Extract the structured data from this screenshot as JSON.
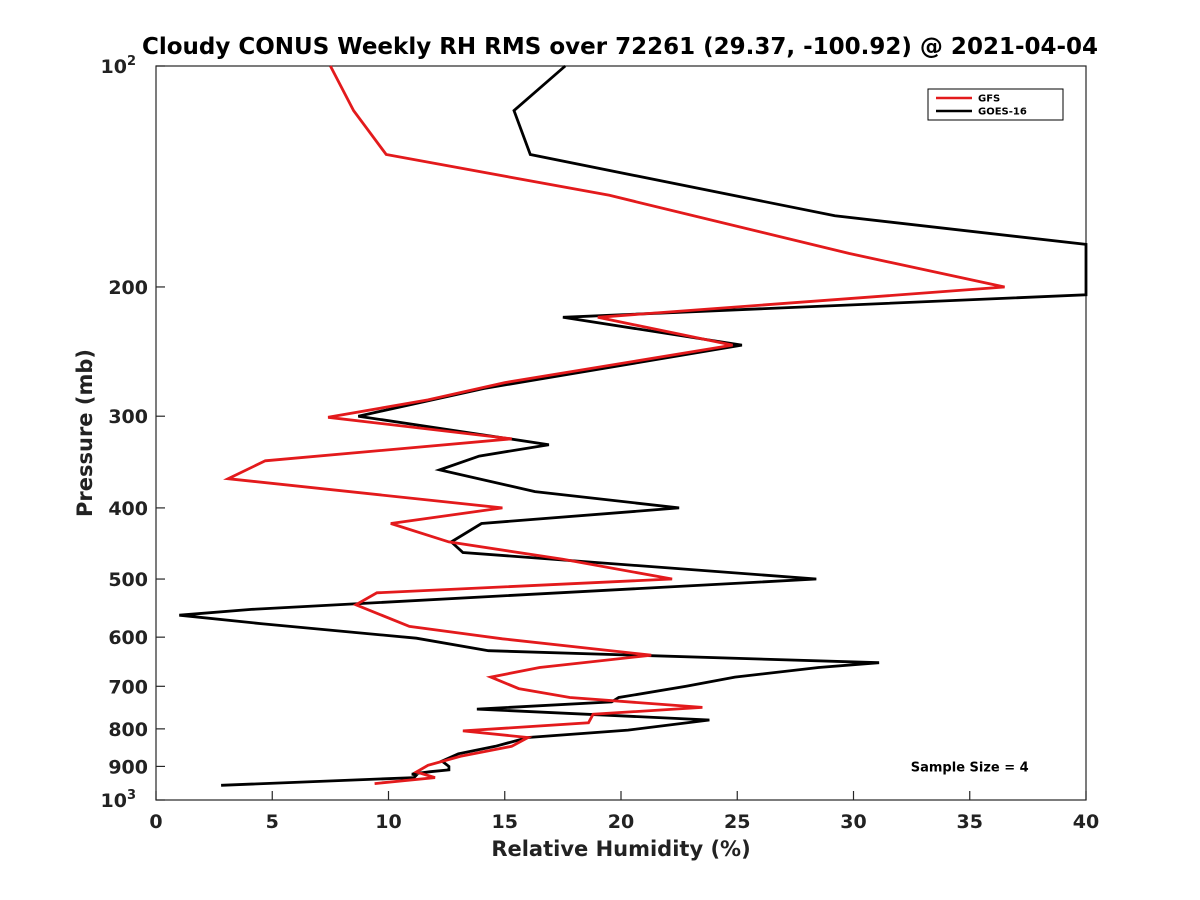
{
  "chart_data": {
    "type": "line",
    "title": "Cloudy CONUS Weekly RH RMS over 72261 (29.37, -100.92) @ 2021-04-04",
    "xlabel": "Relative Humidity (%)",
    "ylabel": "Pressure (mb)",
    "xlim": [
      0,
      40
    ],
    "ylim": [
      100,
      1000
    ],
    "yscale": "log",
    "y_reversed": true,
    "grid": false,
    "legend_position": "top-right",
    "x_ticks": [
      {
        "value": 0,
        "label": "0"
      },
      {
        "value": 5,
        "label": "5"
      },
      {
        "value": 10,
        "label": "10"
      },
      {
        "value": 15,
        "label": "15"
      },
      {
        "value": 20,
        "label": "20"
      },
      {
        "value": 25,
        "label": "25"
      },
      {
        "value": 30,
        "label": "30"
      },
      {
        "value": 35,
        "label": "35"
      },
      {
        "value": 40,
        "label": "40"
      }
    ],
    "y_ticks": [
      {
        "value": 100,
        "base": "10",
        "exp": "2"
      },
      {
        "value": 200,
        "base": "200",
        "exp": ""
      },
      {
        "value": 300,
        "base": "300",
        "exp": ""
      },
      {
        "value": 400,
        "base": "400",
        "exp": ""
      },
      {
        "value": 500,
        "base": "500",
        "exp": ""
      },
      {
        "value": 600,
        "base": "600",
        "exp": ""
      },
      {
        "value": 700,
        "base": "700",
        "exp": ""
      },
      {
        "value": 800,
        "base": "800",
        "exp": ""
      },
      {
        "value": 900,
        "base": "900",
        "exp": ""
      },
      {
        "value": 1000,
        "base": "10",
        "exp": "3"
      }
    ],
    "series": [
      {
        "name": "GFS",
        "color": "#e31a1c",
        "points": [
          [
            7.5,
            100
          ],
          [
            8.5,
            115
          ],
          [
            9.9,
            132
          ],
          [
            19.5,
            150
          ],
          [
            29.8,
            180
          ],
          [
            36.5,
            200
          ],
          [
            19.0,
            220
          ],
          [
            24.8,
            240
          ],
          [
            15.0,
            270
          ],
          [
            11.7,
            285
          ],
          [
            7.4,
            301
          ],
          [
            15.3,
            322
          ],
          [
            4.7,
            345
          ],
          [
            3.1,
            365
          ],
          [
            14.9,
            400
          ],
          [
            10.1,
            420
          ],
          [
            12.6,
            445
          ],
          [
            17.5,
            470
          ],
          [
            22.2,
            500
          ],
          [
            9.5,
            522
          ],
          [
            8.6,
            542
          ],
          [
            10.9,
            580
          ],
          [
            14.9,
            603
          ],
          [
            21.3,
            635
          ],
          [
            16.5,
            660
          ],
          [
            14.4,
            680
          ],
          [
            15.6,
            705
          ],
          [
            17.8,
            725
          ],
          [
            23.5,
            748
          ],
          [
            18.8,
            764
          ],
          [
            18.6,
            785
          ],
          [
            13.2,
            805
          ],
          [
            16.0,
            822
          ],
          [
            15.3,
            845
          ],
          [
            13.1,
            872
          ],
          [
            11.7,
            897
          ],
          [
            11.2,
            916
          ],
          [
            12.0,
            932
          ],
          [
            9.4,
            950
          ]
        ]
      },
      {
        "name": "GOES-16",
        "color": "#000000",
        "points": [
          [
            17.6,
            100
          ],
          [
            15.4,
            115
          ],
          [
            16.1,
            132
          ],
          [
            29.2,
            160
          ],
          [
            40.0,
            175
          ],
          [
            40.0,
            205
          ],
          [
            17.5,
            220
          ],
          [
            25.2,
            240
          ],
          [
            14.1,
            275
          ],
          [
            8.7,
            300
          ],
          [
            16.9,
            328
          ],
          [
            13.9,
            340
          ],
          [
            12.2,
            355
          ],
          [
            16.3,
            380
          ],
          [
            22.5,
            400
          ],
          [
            14.0,
            420
          ],
          [
            12.7,
            445
          ],
          [
            13.2,
            460
          ],
          [
            28.4,
            500
          ],
          [
            4.1,
            550
          ],
          [
            1.0,
            560
          ],
          [
            4.5,
            575
          ],
          [
            11.2,
            602
          ],
          [
            14.3,
            626
          ],
          [
            31.1,
            650
          ],
          [
            28.5,
            660
          ],
          [
            24.9,
            680
          ],
          [
            22.8,
            700
          ],
          [
            19.9,
            725
          ],
          [
            19.6,
            735
          ],
          [
            13.8,
            752
          ],
          [
            23.8,
            778
          ],
          [
            20.3,
            803
          ],
          [
            16.0,
            822
          ],
          [
            14.6,
            845
          ],
          [
            13.0,
            865
          ],
          [
            12.3,
            885
          ],
          [
            12.6,
            900
          ],
          [
            12.6,
            910
          ],
          [
            11.8,
            915
          ],
          [
            11.0,
            922
          ],
          [
            11.2,
            925
          ],
          [
            11.1,
            932
          ],
          [
            2.8,
            955
          ]
        ]
      }
    ],
    "annotations": [
      {
        "text": "Sample Size = 4",
        "x": 35,
        "y": 900
      }
    ]
  }
}
